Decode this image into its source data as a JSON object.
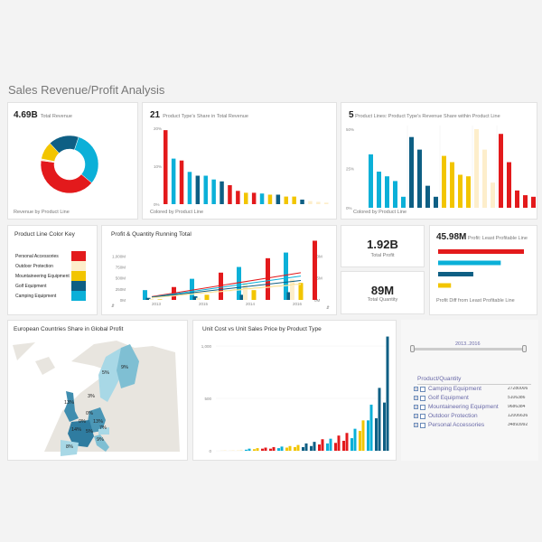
{
  "page_title": "Sales Revenue/Profit Analysis",
  "colors": {
    "personal_accessories": "#e31a1c",
    "outdoor_protection": "#fdeecb",
    "mountaineering_equipment": "#f2c500",
    "golf_equipment": "#0e5f84",
    "camping_equipment": "#0bb0d8"
  },
  "revenue": {
    "value": "4.69B",
    "label": "Total Revenue",
    "footer": "Revenue by Product Line"
  },
  "type_share": {
    "value": "21",
    "label": "Product Type's Share in Total Revenue",
    "footer": "Colored by Product Line",
    "sort_icon": "sort-icon"
  },
  "line_share": {
    "value": "5",
    "label": "Product Lines: Product Type's Revenue Share within Product Line",
    "footer": "Colored by Product Line",
    "sort_icon": "sort-icon"
  },
  "color_key": {
    "title": "Product Line Color Key",
    "items": [
      "Personal Accessories",
      "Outdoor Protection",
      "Mountaineering Equipment",
      "Golf Equipment",
      "Camping Equipment"
    ]
  },
  "running": {
    "title": "Profit & Quantity Running Total"
  },
  "profit": {
    "value": "1.92B",
    "label": "Total Profit"
  },
  "quantity": {
    "value": "89M",
    "label": "Total Quantity"
  },
  "least": {
    "value": "45.98M",
    "label": "Profit: Least Profitable Line",
    "footer": "Profit Diff from Least Profitable Line"
  },
  "map": {
    "title": "European Countries Share in Global Profit",
    "labels": [
      "5%",
      "9%",
      "3%",
      "13%",
      "0%",
      "0%",
      "13%",
      "14%",
      "5%",
      "7%",
      "9%",
      "8%"
    ]
  },
  "unit": {
    "title": "Unit Cost vs Unit Sales Price by Product Type"
  },
  "filter": {
    "range_label": "2013..2016",
    "tree_header": "Product/Quantity",
    "items": [
      {
        "name": "Camping Equipment",
        "qty": "27280006"
      },
      {
        "name": "Golf Equipment",
        "qty": "5106386"
      },
      {
        "name": "Mountaineering Equipment",
        "qty": "9686384"
      },
      {
        "name": "Outdoor Protection",
        "qty": "12006636"
      },
      {
        "name": "Personal Accessories",
        "qty": "34893992"
      }
    ]
  },
  "chart_data": [
    {
      "type": "pie",
      "name": "Revenue by Product Line",
      "categories": [
        "Camping Equipment",
        "Personal Accessories",
        "Outdoor Protection",
        "Mountaineering Equipment",
        "Golf Equipment"
      ],
      "values": [
        31,
        41,
        1,
        10,
        17
      ]
    },
    {
      "type": "bar",
      "name": "Product Type's Share in Total Revenue",
      "ylim": [
        0,
        20
      ],
      "yticks": [
        "0%",
        "10%",
        "20%"
      ],
      "values": [
        19.5,
        12,
        11.5,
        8.5,
        7.5,
        7.5,
        6.5,
        6,
        5,
        3.5,
        3,
        3,
        2.8,
        2.5,
        2.5,
        2,
        2,
        1.2,
        0.8,
        0.6,
        0.4
      ],
      "lines": [
        "PA",
        "CE",
        "PA",
        "CE",
        "GE",
        "CE",
        "CE",
        "GE",
        "PA",
        "PA",
        "ME",
        "PA",
        "CE",
        "ME",
        "GE",
        "ME",
        "ME",
        "GE",
        "OP",
        "OP",
        "OP"
      ]
    },
    {
      "type": "bar",
      "name": "Product Type's Revenue Share within Product Line",
      "ylim": [
        0,
        50
      ],
      "yticks": [
        "0%",
        "25%",
        "50%"
      ],
      "groups": [
        {
          "line": "CE",
          "values": [
            34,
            23,
            20,
            17,
            7
          ]
        },
        {
          "line": "GE",
          "values": [
            45,
            37,
            14,
            7
          ]
        },
        {
          "line": "ME",
          "values": [
            33,
            29,
            21,
            20
          ]
        },
        {
          "line": "OP",
          "values": [
            50,
            37,
            16
          ]
        },
        {
          "line": "PA",
          "values": [
            47,
            29,
            11,
            8,
            7
          ]
        }
      ]
    },
    {
      "type": "bar",
      "name": "Profit & Quantity Running Total",
      "categories": [
        "2013",
        "2015",
        "2014",
        "2016"
      ],
      "yticks": [
        "0M",
        "250M",
        "500M",
        "750M",
        "1,000M"
      ],
      "y2ticks": [
        "0M",
        "15M",
        "30M"
      ],
      "ylim": [
        0,
        1150
      ],
      "series": [
        {
          "line": "CE",
          "values": [
            190,
            410,
            640,
            920
          ]
        },
        {
          "line": "GE",
          "values": [
            40,
            70,
            100,
            150
          ]
        },
        {
          "line": "OP",
          "values": [
            20,
            40,
            330,
            400
          ]
        },
        {
          "line": "ME",
          "values": [
            10,
            100,
            190,
            330
          ]
        },
        {
          "line": "PA",
          "values": [
            250,
            530,
            810,
            1150
          ]
        }
      ]
    },
    {
      "type": "bar",
      "name": "Profit Diff from Least Profitable Line",
      "lines": [
        "PA",
        "CE",
        "GE",
        "ME"
      ],
      "values": [
        100,
        73,
        41,
        15
      ]
    },
    {
      "type": "bar",
      "name": "Unit Cost vs Unit Sales Price by Product Type",
      "ylim": [
        0,
        1000
      ],
      "yticks": [
        "0",
        "500",
        "1,000"
      ],
      "lines": [
        "OP",
        "OP",
        "OP",
        "CE",
        "ME",
        "PA",
        "PA",
        "CE",
        "ME",
        "ME",
        "GE",
        "GE",
        "PA",
        "CE",
        "PA",
        "PA",
        "CE",
        "ME",
        "CE",
        "GE",
        "GE"
      ],
      "cost": [
        2,
        2,
        5,
        10,
        15,
        20,
        20,
        25,
        30,
        35,
        35,
        45,
        60,
        70,
        75,
        95,
        120,
        190,
        290,
        310,
        460
      ],
      "price": [
        5,
        5,
        10,
        20,
        25,
        30,
        35,
        40,
        45,
        55,
        70,
        85,
        110,
        115,
        145,
        170,
        210,
        290,
        440,
        600,
        1090
      ]
    }
  ]
}
